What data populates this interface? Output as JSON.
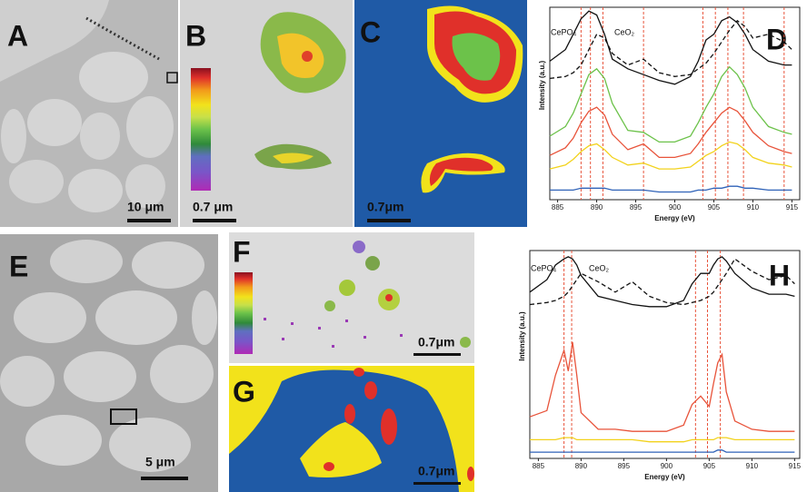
{
  "panels": {
    "A": {
      "label": "A",
      "scale_bar": "10 μm"
    },
    "B": {
      "label": "B",
      "scale_bar": "0.7 μm"
    },
    "C": {
      "label": "C",
      "scale_bar": "0.7μm"
    },
    "D": {
      "label": "D",
      "chart": {
        "type": "line",
        "x_label": "Energy (eV)",
        "y_label": "Intensity (a.u.)",
        "x": [
          884,
          886,
          887,
          888,
          889,
          890,
          891,
          892,
          894,
          896,
          898,
          900,
          902,
          903,
          904,
          905,
          906,
          907,
          908,
          909,
          910,
          912,
          914,
          915
        ],
        "xlim": [
          884,
          916
        ],
        "xticks": [
          885,
          890,
          895,
          900,
          905,
          910,
          915
        ],
        "ylim": [
          0,
          10
        ],
        "markers": [
          888,
          889.2,
          890.8,
          896,
          903.6,
          905.2,
          906.8,
          908.8,
          914
        ],
        "series": [
          {
            "name": "CePO₄",
            "color": "#111111",
            "dashed": false,
            "values": [
              7.2,
              7.8,
              8.6,
              9.4,
              9.8,
              9.6,
              8.6,
              7.3,
              6.8,
              6.5,
              6.2,
              6.0,
              6.4,
              7.2,
              8.3,
              8.6,
              9.3,
              9.5,
              9.2,
              8.6,
              7.8,
              7.2,
              7.0,
              7.0
            ]
          },
          {
            "name": "CeO₂",
            "color": "#111111",
            "dashed": true,
            "values": [
              6.3,
              6.4,
              6.6,
              7.0,
              7.8,
              8.6,
              8.4,
              7.6,
              7.0,
              7.3,
              6.6,
              6.4,
              6.5,
              6.8,
              7.1,
              7.6,
              8.2,
              8.8,
              9.3,
              9.0,
              8.4,
              8.6,
              8.2,
              7.8
            ]
          },
          {
            "color": "#6cc24a",
            "dashed": false,
            "values": [
              3.3,
              3.8,
              4.5,
              5.5,
              6.5,
              6.8,
              6.3,
              5.0,
              3.6,
              3.5,
              3.0,
              3.0,
              3.3,
              4.0,
              4.8,
              5.5,
              6.4,
              6.9,
              6.5,
              5.8,
              4.8,
              3.8,
              3.5,
              3.4
            ]
          },
          {
            "color": "#e8533a",
            "dashed": false,
            "values": [
              2.3,
              2.7,
              3.2,
              4.0,
              4.6,
              4.8,
              4.4,
              3.4,
              2.6,
              2.9,
              2.2,
              2.2,
              2.4,
              2.9,
              3.5,
              4.0,
              4.5,
              4.8,
              4.6,
              4.1,
              3.5,
              2.8,
              2.5,
              2.4
            ]
          },
          {
            "color": "#f2d21b",
            "dashed": false,
            "values": [
              1.6,
              1.8,
              2.1,
              2.5,
              2.8,
              2.9,
              2.6,
              2.2,
              1.8,
              1.9,
              1.6,
              1.6,
              1.7,
              2.0,
              2.3,
              2.5,
              2.8,
              3.0,
              2.9,
              2.6,
              2.2,
              1.9,
              1.8,
              1.7
            ]
          },
          {
            "color": "#2f62b8",
            "dashed": false,
            "values": [
              0.5,
              0.5,
              0.5,
              0.6,
              0.6,
              0.6,
              0.6,
              0.5,
              0.5,
              0.5,
              0.4,
              0.4,
              0.4,
              0.5,
              0.5,
              0.6,
              0.6,
              0.7,
              0.7,
              0.6,
              0.6,
              0.5,
              0.5,
              0.5
            ]
          }
        ]
      }
    },
    "E": {
      "label": "E",
      "scale_bar": "5 μm"
    },
    "F": {
      "label": "F",
      "scale_bar": "0.7μm"
    },
    "G": {
      "label": "G",
      "scale_bar": "0.7μm"
    },
    "H": {
      "label": "H",
      "chart": {
        "type": "line",
        "x_label": "Energy (eV)",
        "y_label": "Intensity (a.u.)",
        "x": [
          884,
          886,
          887,
          888,
          888.5,
          889,
          889.5,
          890,
          892,
          894,
          896,
          898,
          900,
          902,
          903,
          904,
          905,
          905.5,
          906,
          906.5,
          907,
          908,
          910,
          912,
          914,
          915
        ],
        "xlim": [
          884,
          915.6
        ],
        "xticks": [
          885,
          890,
          895,
          900,
          905,
          910,
          915
        ],
        "ylim": [
          0,
          10
        ],
        "markers": [
          888,
          888.9,
          903.4,
          904.8,
          906.3
        ],
        "series": [
          {
            "name": "CePO₄",
            "color": "#111111",
            "dashed": false,
            "values": [
              8.0,
              8.6,
              9.3,
              9.6,
              9.7,
              9.6,
              9.3,
              8.8,
              7.8,
              7.6,
              7.4,
              7.3,
              7.3,
              7.6,
              8.4,
              8.9,
              8.9,
              9.3,
              9.6,
              9.7,
              9.5,
              8.9,
              8.2,
              7.9,
              7.9,
              7.8
            ]
          },
          {
            "name": "CeO₂",
            "color": "#111111",
            "dashed": true,
            "values": [
              7.4,
              7.5,
              7.6,
              7.8,
              8.0,
              8.3,
              8.6,
              8.9,
              8.5,
              8.0,
              8.5,
              7.8,
              7.5,
              7.4,
              7.5,
              7.6,
              7.8,
              8.0,
              8.3,
              8.6,
              8.9,
              9.6,
              9.0,
              8.6,
              8.8,
              8.4
            ]
          },
          {
            "color": "#e8533a",
            "dashed": false,
            "values": [
              2.0,
              2.3,
              4.0,
              5.2,
              4.2,
              5.6,
              4.0,
              2.2,
              1.4,
              1.4,
              1.3,
              1.3,
              1.3,
              1.6,
              2.6,
              3.0,
              2.5,
              3.6,
              4.6,
              5.0,
              3.2,
              1.8,
              1.4,
              1.3,
              1.3,
              1.3
            ]
          },
          {
            "color": "#f2d21b",
            "dashed": false,
            "values": [
              0.9,
              0.9,
              0.9,
              1.0,
              1.0,
              1.0,
              0.9,
              0.9,
              0.9,
              0.9,
              0.9,
              0.8,
              0.8,
              0.8,
              0.9,
              0.9,
              0.9,
              0.9,
              1.0,
              1.0,
              1.0,
              0.9,
              0.9,
              0.9,
              0.9,
              0.9
            ]
          },
          {
            "color": "#2f62b8",
            "dashed": false,
            "values": [
              0.3,
              0.3,
              0.3,
              0.3,
              0.3,
              0.3,
              0.3,
              0.3,
              0.3,
              0.3,
              0.3,
              0.3,
              0.3,
              0.3,
              0.3,
              0.3,
              0.3,
              0.3,
              0.4,
              0.4,
              0.3,
              0.3,
              0.3,
              0.3,
              0.3,
              0.3
            ]
          }
        ]
      }
    }
  }
}
